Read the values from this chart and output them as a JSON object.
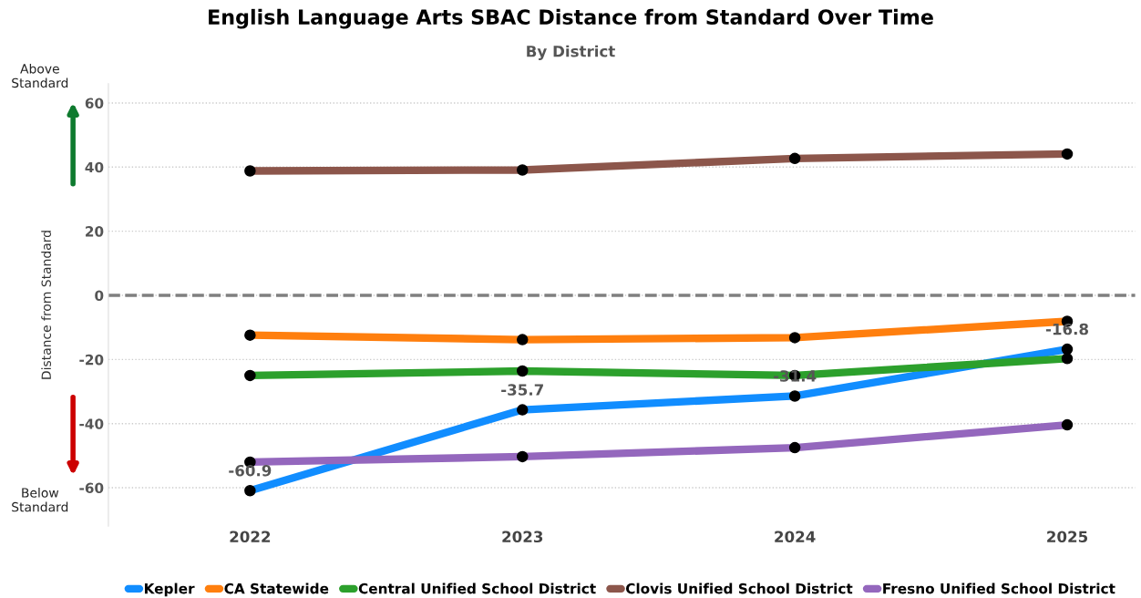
{
  "chart_data": {
    "type": "line",
    "title": "English Language Arts SBAC Distance from Standard Over Time",
    "subtitle": "By District",
    "ylabel": "Distance from Standard",
    "categories": [
      "2022",
      "2023",
      "2024",
      "2025"
    ],
    "series": [
      {
        "name": "Kepler",
        "color": "#118dff",
        "values": [
          -60.9,
          -35.7,
          -31.4,
          -16.8
        ],
        "value_labels": [
          "-60.9",
          "-35.7",
          "-31.4",
          "-16.8"
        ]
      },
      {
        "name": "CA Statewide",
        "color": "#ff7f0e",
        "values": [
          -12.4,
          -13.8,
          -13.2,
          -8.1
        ]
      },
      {
        "name": "Central Unified School District",
        "color": "#2ca02c",
        "values": [
          -25.0,
          -23.6,
          -25.0,
          -19.7
        ]
      },
      {
        "name": "Clovis Unified School District",
        "color": "#8c564b",
        "values": [
          38.8,
          39.1,
          42.7,
          44.1
        ]
      },
      {
        "name": "Fresno Unified School District",
        "color": "#9467bd",
        "values": [
          -52.0,
          -50.3,
          -47.5,
          -40.4
        ]
      }
    ],
    "ylim": [
      -72,
      66
    ],
    "yticks": [
      -60,
      -40,
      -20,
      0,
      20,
      40,
      60
    ],
    "ref_lines": [
      {
        "axis": "y",
        "value": 0,
        "color": "#808080",
        "line_style": "dashed"
      }
    ],
    "annotations": [
      "Above\nStandard",
      "Below\nStandard"
    ],
    "grid": "y",
    "legend": "bottom",
    "marker": "circle",
    "line_style": "solid"
  }
}
